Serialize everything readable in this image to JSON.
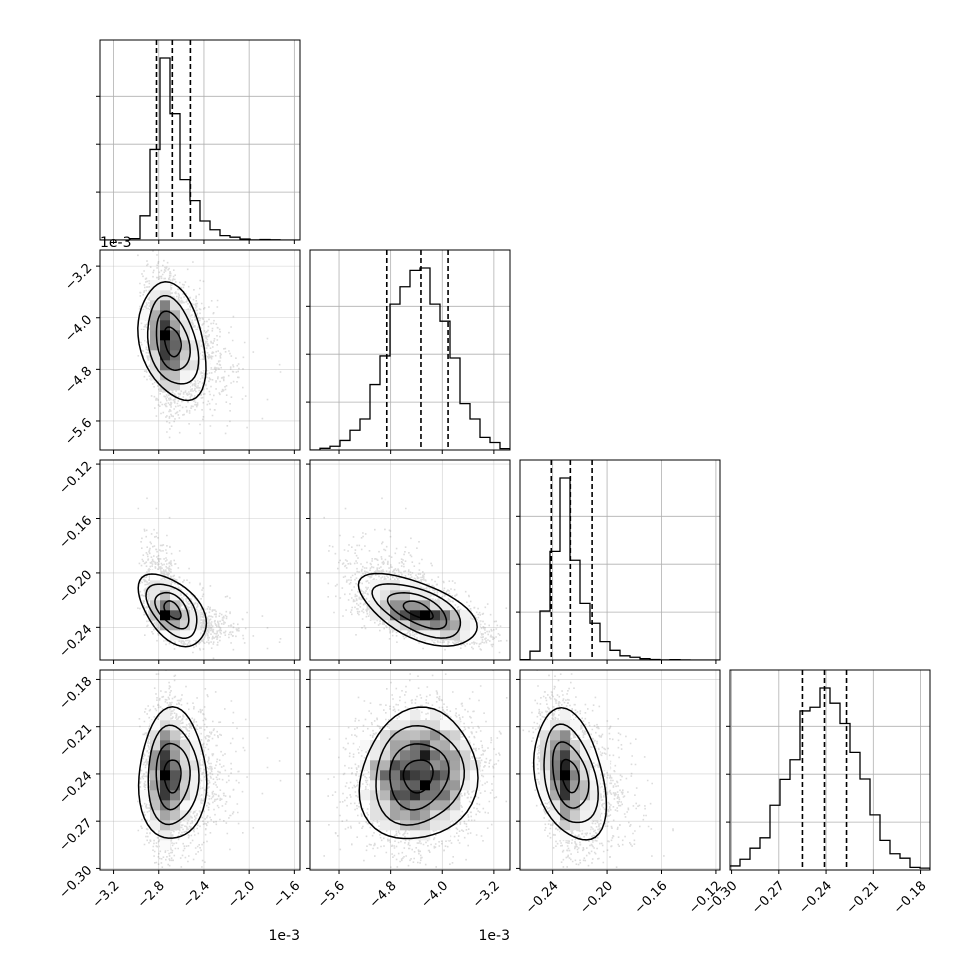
{
  "chart_data": {
    "type": "corner",
    "grid": true,
    "parameters": [
      {
        "ticks": [
          -3.2,
          -2.8,
          -2.4,
          -2.0,
          -1.6
        ],
        "tick_labels": [
          "−3.2",
          "−2.8",
          "−2.4",
          "−2.0",
          "−1.6"
        ],
        "offset_label": "1e-3",
        "range": [
          -3.32,
          -1.55
        ],
        "quantiles": [
          -2.82,
          -2.68,
          -2.52
        ],
        "center": -2.68,
        "sd": 0.13,
        "skew": 0.9
      },
      {
        "ticks": [
          -5.6,
          -4.8,
          -4.0,
          -3.2
        ],
        "tick_labels": [
          "−5.6",
          "−4.8",
          "−4.0",
          "−3.2"
        ],
        "offset_label": "1e-3",
        "range": [
          -6.05,
          -2.95
        ],
        "quantiles": [
          -4.86,
          -4.33,
          -3.91
        ],
        "center": -4.38,
        "sd": 0.45,
        "skew": 0.0
      },
      {
        "ticks": [
          -0.24,
          -0.2,
          -0.16,
          -0.12
        ],
        "tick_labels": [
          "−0.24",
          "−0.20",
          "−0.16",
          "−0.12"
        ],
        "offset_label": "",
        "range": [
          -0.264,
          -0.117
        ],
        "quantiles": [
          -0.241,
          -0.227,
          -0.211
        ],
        "center": -0.227,
        "sd": 0.012,
        "skew": 0.8
      },
      {
        "ticks": [
          -0.3,
          -0.27,
          -0.24,
          -0.21,
          -0.18
        ],
        "tick_labels": [
          "−0.30",
          "−0.27",
          "−0.24",
          "−0.21",
          "−0.18"
        ],
        "offset_label": "",
        "range": [
          -0.301,
          -0.174
        ],
        "quantiles": [
          -0.255,
          -0.241,
          -0.227
        ],
        "center": -0.241,
        "sd": 0.0125,
        "skew": 0.0
      }
    ],
    "correlations": [
      [
        1,
        0,
        0,
        0
      ],
      [
        -0.3,
        1,
        0,
        0
      ],
      [
        -0.55,
        -0.6,
        1,
        0
      ],
      [
        0.05,
        0.15,
        -0.55,
        1
      ]
    ],
    "axis_offset_labels": [
      "1e-3",
      "1e-3",
      "",
      ""
    ],
    "row_offset_labels": [
      "",
      "1e-3",
      "",
      ""
    ],
    "colors": {
      "axes": "#000000",
      "grid": "#b0b0b0",
      "points": "#808080",
      "contour": "#000000"
    }
  }
}
